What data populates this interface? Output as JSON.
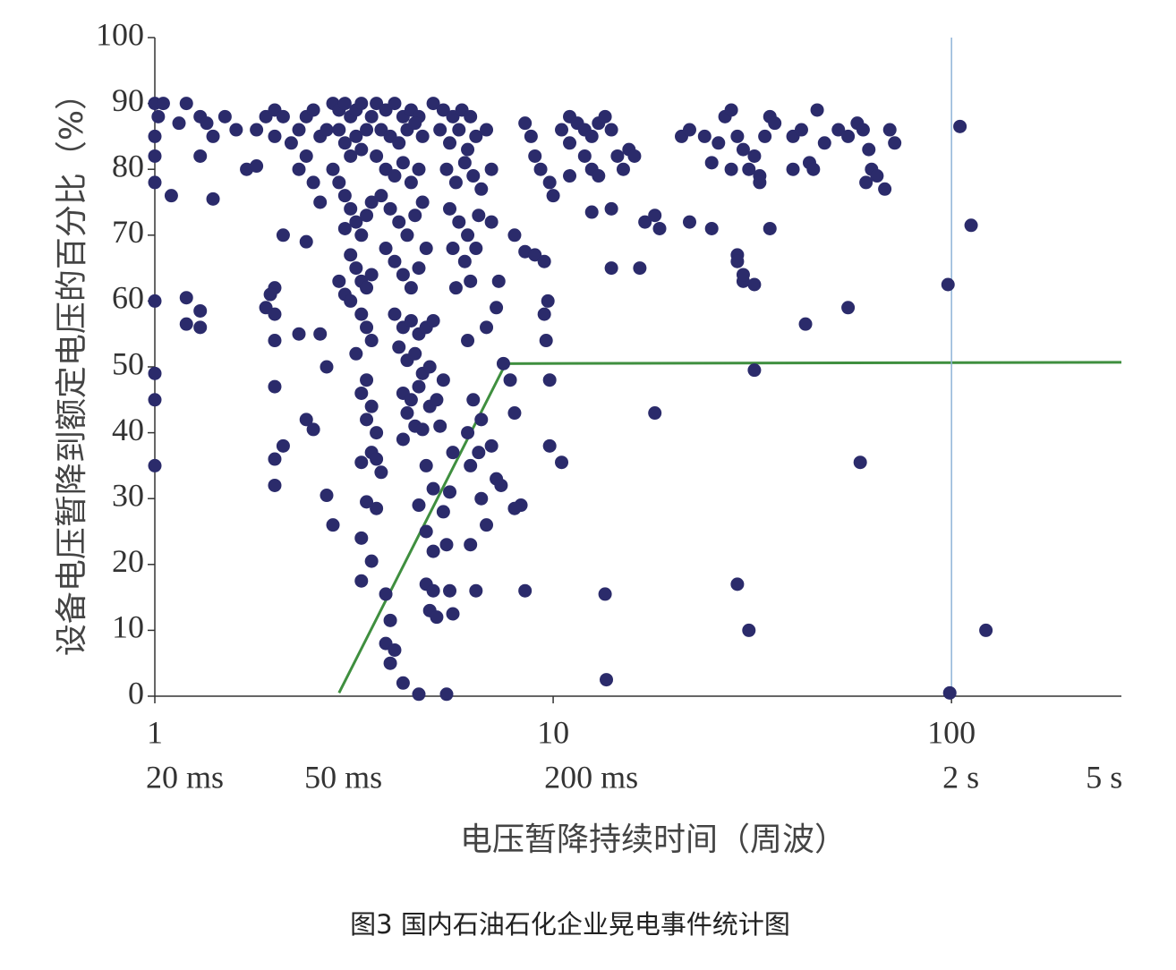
{
  "chart_data": {
    "type": "scatter",
    "y_label": "设备电压暂降到额定电压的百分比（%）",
    "x_label": "电压暂降持续时间（周波）",
    "caption": "图3 国内石油石化企业晃电事件统计图",
    "log_x": true,
    "xlim": [
      1,
      267
    ],
    "ylim": [
      0,
      100
    ],
    "xticks": [
      1,
      10,
      100
    ],
    "time_ticks": [
      {
        "value": 1,
        "label": "20 ms"
      },
      {
        "value": 2.5,
        "label": "50 ms"
      },
      {
        "value": 10,
        "label": "200 ms"
      },
      {
        "value": 100,
        "label": "2 s"
      },
      {
        "value": 250,
        "label": "5 s"
      }
    ],
    "yticks": [
      0,
      10,
      20,
      30,
      40,
      50,
      60,
      70,
      80,
      90,
      100
    ],
    "grid": false,
    "lines": [
      {
        "color": "#3f8f3f",
        "x": [
          2.9,
          7.6,
          267
        ],
        "values": [
          0.5,
          50.5,
          50.7
        ]
      },
      {
        "color": "#8fb4d8",
        "x": [
          100,
          100
        ],
        "values": [
          0,
          100
        ]
      }
    ],
    "series": [
      {
        "color": "#2b2b6b",
        "x": [
          1,
          1.02,
          1,
          1,
          1,
          1,
          1,
          1,
          1,
          1.05,
          1.1,
          1.2,
          1.15,
          1.3,
          1.35,
          1.4,
          1.5,
          1.6,
          1.3,
          1.4,
          1.2,
          1.2,
          1.3,
          1.3,
          1.7,
          1.8,
          1.8,
          1.9,
          2,
          2.1,
          2,
          2.1,
          2,
          1.95,
          1.9,
          2,
          2,
          2,
          2,
          2.1,
          2,
          2.3,
          2.4,
          2.5,
          2.2,
          2.3,
          2.4,
          2.5,
          2.4,
          2.5,
          2.6,
          2.4,
          2.6,
          2.7,
          2.7,
          2.8,
          2.3,
          2.6,
          2.7,
          2.8,
          2.9,
          3,
          3.1,
          3.2,
          3.3,
          2.9,
          3,
          3.1,
          3.2,
          3.3,
          3.4,
          3.5,
          2.8,
          2.9,
          3,
          3.1,
          3.2,
          3.3,
          3.4,
          3.5,
          3.0,
          3.1,
          3.2,
          3.3,
          2.9,
          3,
          3.1,
          3.4,
          3.5,
          3.3,
          3.4,
          3.5,
          3.2,
          3.4,
          3.3,
          3.5,
          3.4,
          3.6,
          3.5,
          3.3,
          3.6,
          3.7,
          3.4,
          3.6,
          3.3,
          3.5,
          3.3,
          3.8,
          3.9,
          3.8,
          4,
          3.9,
          4.2,
          4.6,
          3.6,
          3.8,
          4,
          4.2,
          4.4,
          4.6,
          3.7,
          3.9,
          4.1,
          4.3,
          4.5,
          4.7,
          3.6,
          3.8,
          4,
          4.2,
          4.4,
          4.6,
          3.7,
          3.9,
          4.1,
          4.3,
          4.5,
          4.7,
          3.8,
          4,
          4.2,
          4.4,
          4.6,
          4.8,
          4,
          4.2,
          4.4,
          4.6,
          4.8,
          5,
          4.1,
          4.3,
          4.5,
          4.7,
          4.9,
          4.2,
          4.4,
          4.6,
          4.3,
          4.5,
          4.7,
          4.9,
          4.2,
          4.8,
          5,
          4.6,
          4.8,
          5,
          4.8,
          5,
          4.9,
          5.1,
          5.4,
          5.6,
          5.5,
          5.4,
          5.3,
          5.5,
          5.6,
          5.2,
          5.1,
          5.3,
          5,
          5.3,
          5.6,
          5.9,
          6.2,
          5.2,
          5.5,
          5.8,
          6.1,
          6.4,
          6.8,
          5.4,
          5.7,
          6,
          6.3,
          6.6,
          7,
          5.5,
          5.8,
          6.1,
          6.5,
          7,
          5.6,
          6,
          6.4,
          5.7,
          6.2,
          7.3,
          6.8,
          7.2,
          6.1,
          7.5,
          6.3,
          6.6,
          6.1,
          6.5,
          6.2,
          7,
          7.2,
          6.6,
          7.4,
          6.8,
          6.2,
          6.4,
          8.3,
          8,
          8,
          7.8,
          8.5,
          8.5,
          8.8,
          9,
          9.3,
          8,
          8.5,
          9,
          9.5,
          9.7,
          9.5,
          9.6,
          9.8,
          9.8,
          10.5,
          10.5,
          11,
          11.5,
          12,
          11,
          12.5,
          13,
          13.5,
          14,
          12,
          12.5,
          13,
          14.5,
          15,
          11,
          10,
          9.8,
          12.5,
          14,
          14,
          13.5,
          13.6,
          15.5,
          16,
          17,
          18,
          18.5,
          16.5,
          18,
          21,
          22,
          24,
          26,
          27,
          28,
          29,
          30,
          32,
          34,
          35,
          36,
          25,
          28,
          31,
          33,
          33,
          40,
          42,
          46,
          48,
          52,
          55,
          58,
          60,
          62,
          63,
          61,
          65,
          68,
          70,
          72,
          44,
          40,
          45,
          22,
          25,
          29,
          29,
          30,
          30,
          32,
          35,
          43,
          55,
          32,
          59,
          29,
          31,
          98,
          99,
          105,
          112,
          122
        ],
        "values": [
          90,
          88,
          85,
          82,
          78,
          60,
          49,
          45,
          35,
          90,
          76,
          90,
          87,
          88,
          87,
          85,
          88,
          86,
          82,
          75.5,
          60.5,
          56.5,
          58.5,
          56,
          80,
          80.5,
          86,
          88,
          89,
          88,
          85,
          70,
          62,
          61,
          59,
          58,
          54,
          47,
          36,
          38,
          32,
          55,
          42,
          40.5,
          84,
          86,
          88,
          89,
          82,
          78,
          75,
          69,
          55,
          50,
          30.5,
          26,
          80,
          85,
          86,
          90,
          89,
          90,
          88,
          89,
          90,
          86,
          84,
          82,
          85,
          83,
          86,
          88,
          80,
          78,
          76,
          74,
          72,
          70,
          73,
          75,
          71,
          67,
          65,
          63,
          63,
          61,
          60,
          62,
          64,
          58,
          56,
          54,
          52,
          48,
          46,
          44,
          42,
          40,
          37,
          35.5,
          36,
          34,
          29.5,
          28.5,
          24,
          20.5,
          17.5,
          15.5,
          11.5,
          8,
          7,
          5,
          2,
          0.3,
          90,
          89,
          90,
          88,
          89,
          88,
          86,
          85,
          84,
          86,
          87,
          85,
          82,
          80,
          79,
          81,
          78,
          80,
          76,
          74,
          72,
          70,
          73,
          75,
          68,
          66,
          64,
          62,
          65,
          68,
          58,
          56,
          57,
          55,
          56,
          57,
          53,
          51,
          52,
          49,
          50,
          46,
          45,
          47,
          43,
          41,
          40.5,
          44,
          39,
          35,
          31.5,
          29,
          25,
          22,
          17,
          16,
          13,
          12,
          0.3,
          12.5,
          16,
          23,
          28,
          31,
          37,
          41,
          45,
          48,
          90,
          89,
          88,
          89,
          88,
          86,
          84,
          86,
          83,
          85,
          86,
          80,
          78,
          81,
          79,
          77,
          80,
          74,
          72,
          70,
          73,
          72,
          68,
          66,
          68,
          62,
          63,
          63,
          56,
          59,
          54,
          50.5,
          45,
          42,
          40,
          37,
          35,
          38,
          33,
          30,
          32,
          26,
          23,
          16,
          29,
          28.5,
          43,
          48,
          16,
          87,
          85,
          82,
          80,
          70,
          67.5,
          67,
          66,
          60,
          58,
          54,
          48,
          38,
          35.5,
          86,
          88,
          87,
          86,
          84,
          85,
          87,
          88,
          86,
          82,
          80,
          79,
          82,
          80,
          79,
          76,
          78,
          73.5,
          74,
          65,
          15.5,
          2.5,
          83,
          82,
          72,
          73,
          71,
          65,
          43,
          85,
          86,
          85,
          84,
          88,
          89,
          85,
          83,
          82,
          85,
          88,
          87,
          81,
          80,
          80,
          79,
          78,
          85,
          86,
          89,
          84,
          86,
          85,
          87,
          86,
          83,
          80,
          78,
          79,
          77,
          86,
          84,
          81,
          80,
          80,
          72,
          71,
          67,
          66,
          63,
          64,
          62.5,
          71,
          56.5,
          59,
          49.5,
          35.5,
          17,
          10,
          62.5,
          0.5,
          86.5,
          71.5,
          10
        ]
      }
    ]
  }
}
